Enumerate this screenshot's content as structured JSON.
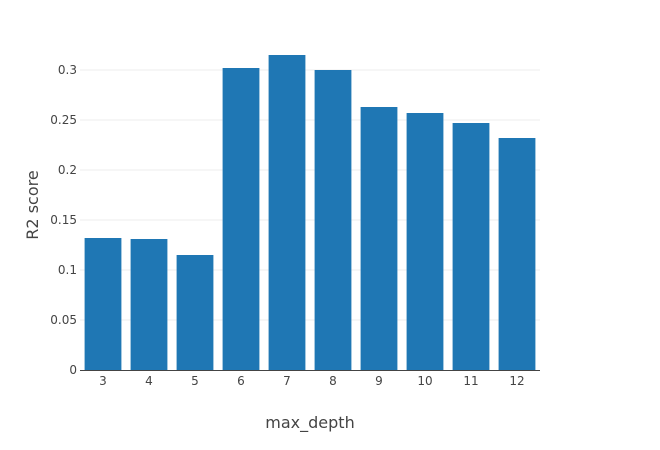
{
  "chart_data": {
    "type": "bar",
    "categories": [
      "3",
      "4",
      "5",
      "6",
      "7",
      "8",
      "9",
      "10",
      "11",
      "12"
    ],
    "values": [
      0.132,
      0.131,
      0.115,
      0.302,
      0.315,
      0.3,
      0.263,
      0.257,
      0.247,
      0.232
    ],
    "title": "",
    "xlabel": "max_depth",
    "ylabel": "R2 score",
    "ylim": [
      0,
      0.33
    ],
    "yticks": [
      0,
      0.05,
      0.1,
      0.15,
      0.2,
      0.25,
      0.3
    ],
    "ytick_labels": [
      "0",
      "0.05",
      "0.1",
      "0.15",
      "0.2",
      "0.25",
      "0.3"
    ],
    "grid": true,
    "legend": "none",
    "bar_color": "#1f77b4",
    "grid_color": "#eeeeee",
    "axis_color": "#444444"
  }
}
